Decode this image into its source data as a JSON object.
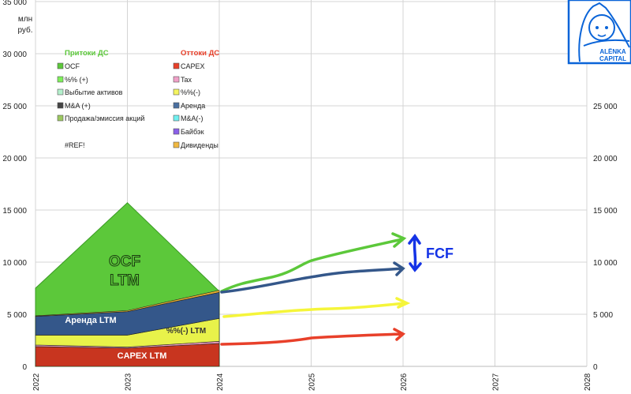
{
  "chart_data": {
    "type": "area",
    "ylabel": "млн руб.",
    "ylim": [
      0,
      35000
    ],
    "y_ticks_left": [
      "0",
      "5 000",
      "10 000",
      "15 000",
      "20 000",
      "25 000",
      "30 000",
      "35 000"
    ],
    "y_ticks_right": [
      "0",
      "5 000",
      "10 000",
      "15 000",
      "20 000",
      "25 000"
    ],
    "x_ticks": [
      "2022",
      "2023",
      "2024",
      "2025",
      "2026",
      "2027",
      "2028"
    ],
    "grid": true,
    "categories": [
      2022,
      2023,
      2024
    ],
    "stacked_outflows": [
      {
        "name": "CAPEX",
        "values": [
          1900,
          1750,
          2200
        ],
        "color": "#c8351f"
      },
      {
        "name": "Tax",
        "values": [
          150,
          100,
          200
        ],
        "color": "#e89bc0"
      },
      {
        "name": "%%(-)",
        "values": [
          950,
          1150,
          2200
        ],
        "color": "#e8f24a"
      },
      {
        "name": "Аренда",
        "values": [
          1800,
          2250,
          2500
        ],
        "color": "#34578a"
      },
      {
        "name": "Дивиденды",
        "values": [
          50,
          100,
          200
        ],
        "color": "#e8b030"
      }
    ],
    "inflows": [
      {
        "name": "OCF",
        "values": [
          7500,
          15700,
          7200
        ],
        "color": "#5cc83a"
      }
    ],
    "area_labels": {
      "ocf": "OCF",
      "ocf2": "LTM",
      "rent": "Аренда LTM",
      "interest": "%%(-) LTM",
      "capex": "CAPEX LTM"
    },
    "annotation": {
      "text": "FCF",
      "color": "#1433e6"
    },
    "legend": {
      "inflows_title": "Притоки ДС",
      "inflows_title_color": "#5cc83a",
      "inflows": [
        {
          "label": "OCF",
          "color": "#5cc83a"
        },
        {
          "label": "%% (+)",
          "color": "#7ef05a"
        },
        {
          "label": "Выбытие активов",
          "color": "#b4f0cc"
        },
        {
          "label": "M&A (+)",
          "color": "#444444"
        },
        {
          "label": "Продажа/эмиссия акций",
          "color": "#9cc860"
        },
        {
          "label": "#REF!",
          "color": ""
        }
      ],
      "outflows_title": "Оттоки ДС",
      "outflows_title_color": "#e8402a",
      "outflows": [
        {
          "label": "CAPEX",
          "color": "#e8402a"
        },
        {
          "label": "Tax",
          "color": "#f0a0c8"
        },
        {
          "label": "%%(-)",
          "color": "#f5f560"
        },
        {
          "label": "Аренда",
          "color": "#4a70a0"
        },
        {
          "label": "M&A(-)",
          "color": "#70f0f0"
        },
        {
          "label": "Байбэк",
          "color": "#8a60e8"
        },
        {
          "label": "Дивиденды",
          "color": "#f0b840"
        }
      ]
    }
  },
  "logo": {
    "text1": "ALЁNKA",
    "text2": "CAPITAL",
    "color": "#0a64d8"
  }
}
